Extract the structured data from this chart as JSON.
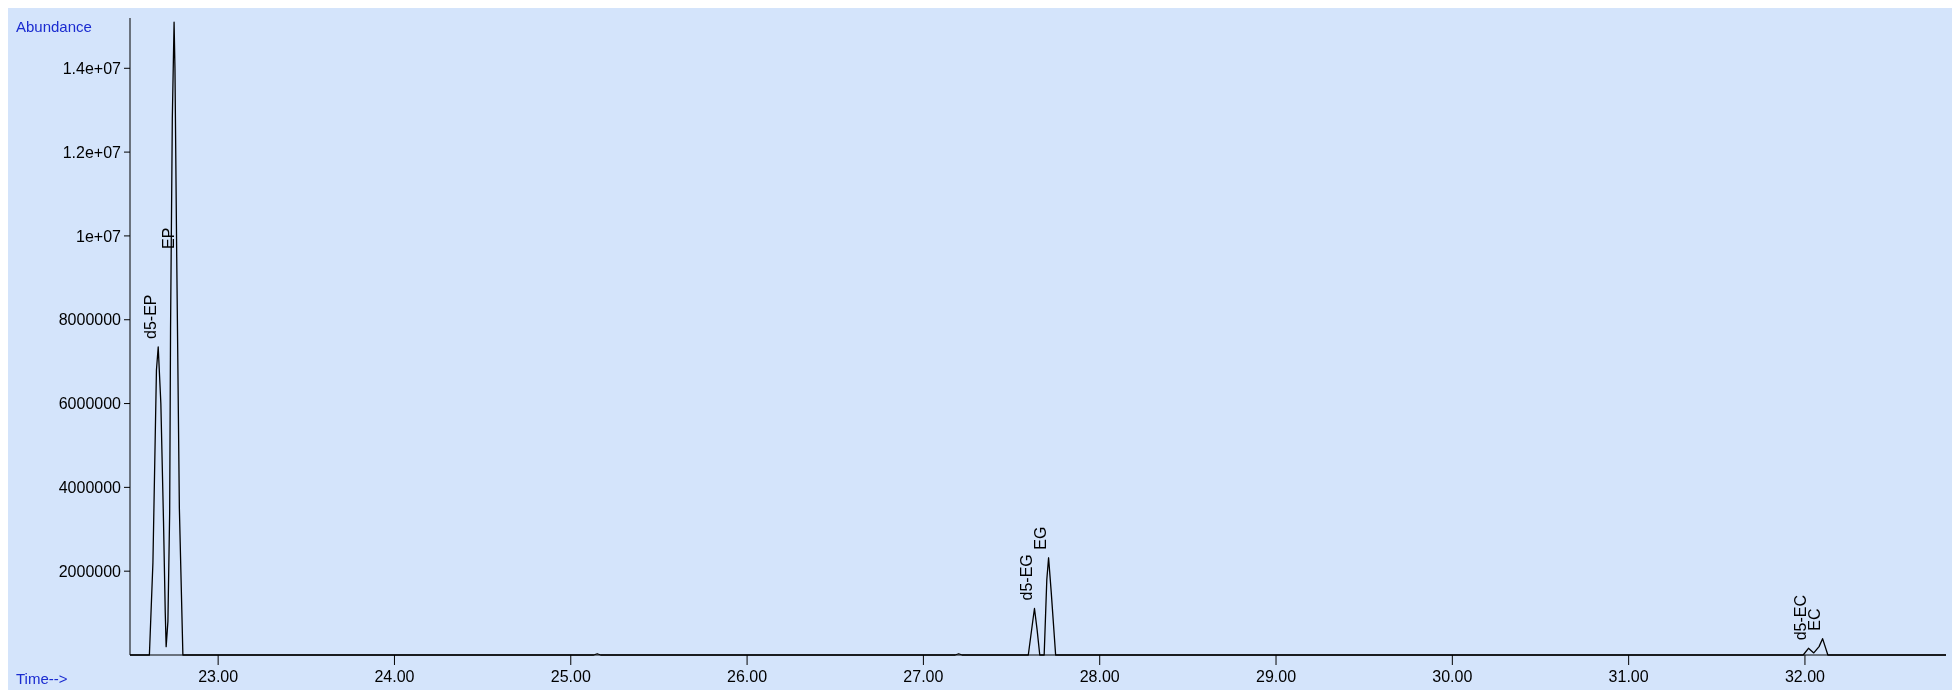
{
  "chart_data": {
    "type": "line",
    "xlabel": "Time-->",
    "ylabel": "Abundance",
    "x": [
      22.5,
      22.61,
      22.63,
      22.65,
      22.66,
      22.675,
      22.69,
      22.7,
      22.705,
      22.715,
      22.725,
      22.73,
      22.74,
      22.75,
      22.755,
      22.765,
      22.78,
      22.8,
      25.13,
      25.15,
      25.17,
      27.18,
      27.2,
      27.22,
      27.595,
      27.62,
      27.63,
      27.645,
      27.66,
      27.685,
      27.7,
      27.71,
      27.725,
      27.75,
      31.99,
      32.02,
      32.05,
      32.08,
      32.1,
      32.13,
      32.8
    ],
    "series": [
      {
        "color": "#000000",
        "values": [
          0,
          0,
          2200000,
          6800000,
          7350000,
          6000000,
          3200000,
          1000000,
          200000,
          800000,
          3400000,
          7800000,
          12800000,
          15100000,
          14000000,
          9500000,
          3500000,
          0,
          0,
          30000,
          0,
          0,
          30000,
          0,
          0,
          800000,
          1110000,
          600000,
          0,
          0,
          1800000,
          2320000,
          1500000,
          0,
          0,
          160000,
          50000,
          200000,
          390000,
          0,
          0
        ]
      }
    ],
    "xlim": [
      22.5,
      32.8
    ],
    "ylim": [
      0,
      15200000
    ],
    "xticks": [
      {
        "value": 23,
        "label": "23.00"
      },
      {
        "value": 24,
        "label": "24.00"
      },
      {
        "value": 25,
        "label": "25.00"
      },
      {
        "value": 26,
        "label": "26.00"
      },
      {
        "value": 27,
        "label": "27.00"
      },
      {
        "value": 28,
        "label": "28.00"
      },
      {
        "value": 29,
        "label": "29.00"
      },
      {
        "value": 30,
        "label": "30.00"
      },
      {
        "value": 31,
        "label": "31.00"
      },
      {
        "value": 32,
        "label": "32.00"
      }
    ],
    "yticks": [
      2000000,
      4000000,
      6000000,
      8000000,
      {
        "value": 10000000,
        "label": "1e+07"
      },
      {
        "value": 12000000,
        "label": "1.2e+07"
      },
      {
        "value": 14000000,
        "label": "1.4e+07"
      }
    ],
    "annotations": [
      {
        "text": "d5-EP",
        "x": 22.66,
        "y": 7350000
      },
      {
        "text": "EP",
        "x": 22.765,
        "y": 9500000
      },
      {
        "text": "d5-EG",
        "x": 27.63,
        "y": 1110000
      },
      {
        "text": "EG",
        "x": 27.71,
        "y": 2320000
      },
      {
        "text": "d5-EC",
        "x": 32.02,
        "y": 160000
      },
      {
        "text": "EC",
        "x": 32.1,
        "y": 390000
      }
    ],
    "grid": false,
    "marker": "none",
    "line_style": "solid"
  }
}
